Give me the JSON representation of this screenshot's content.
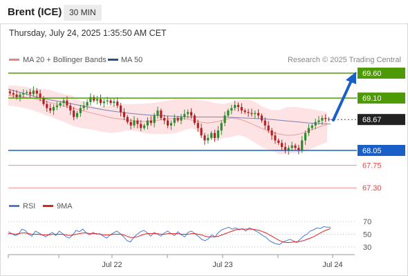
{
  "header": {
    "title": "Brent (ICE)",
    "timeframe": "30 MIN"
  },
  "timestamp": "Thursday, July 24, 2025 1:35:50 AM CET",
  "legend": {
    "ma20": "MA 20 + Bollinger Bands",
    "ma50": "MA 50",
    "credit": "Research © 2025 Trading Central"
  },
  "rsi_legend": {
    "rsi": "RSI",
    "ma9": "9MA"
  },
  "colors": {
    "green": "#4e9a06",
    "blue": "#1a5fc8",
    "red": "#e04848",
    "candle_up": "#2e8b2e",
    "candle_down": "#b22222",
    "band": "#fde3e3",
    "ma50": "#7d7fb3",
    "rsi": "#4a78d6",
    "rsi_ma": "#e02020",
    "current": "#222222"
  },
  "chart_data": [
    {
      "type": "candlestick",
      "title": "Brent (ICE)",
      "timeframe": "30 MIN",
      "x_tick_labels": [
        "Jul 22",
        "Jul 23",
        "Jul 24"
      ],
      "ylim": [
        67.15,
        69.75
      ],
      "levels": [
        {
          "label": "69.60",
          "value": 69.6,
          "kind": "resistance"
        },
        {
          "label": "69.10",
          "value": 69.1,
          "kind": "resistance"
        },
        {
          "label": "68.67",
          "value": 68.67,
          "kind": "current"
        },
        {
          "label": "68.05",
          "value": 68.05,
          "kind": "support"
        },
        {
          "label": "67.75",
          "value": 67.75,
          "kind": "support"
        },
        {
          "label": "67.30",
          "value": 67.3,
          "kind": "support"
        }
      ],
      "close_series": [
        69.2,
        69.17,
        69.12,
        69.17,
        69.2,
        69.22,
        69.18,
        69.25,
        69.19,
        69.1,
        68.98,
        68.9,
        68.85,
        68.92,
        68.95,
        69.0,
        69.05,
        68.95,
        68.85,
        68.72,
        68.8,
        68.9,
        68.95,
        69.02,
        69.12,
        69.05,
        69.08,
        69.0,
        69.03,
        69.05,
        69.0,
        69.03,
        68.95,
        68.82,
        68.72,
        68.62,
        68.55,
        68.65,
        68.58,
        68.5,
        68.55,
        68.65,
        68.6,
        68.75,
        68.85,
        68.7,
        68.65,
        68.55,
        68.6,
        68.7,
        68.65,
        68.72,
        68.78,
        68.82,
        68.75,
        68.6,
        68.5,
        68.35,
        68.25,
        68.3,
        68.4,
        68.3,
        68.45,
        68.6,
        68.75,
        68.85,
        68.9,
        68.96,
        68.92,
        68.85,
        68.82,
        68.8,
        68.78,
        68.8,
        68.75,
        68.65,
        68.55,
        68.45,
        68.35,
        68.25,
        68.2,
        68.12,
        68.05,
        68.1,
        68.15,
        68.1,
        68.05,
        68.25,
        68.4,
        68.5,
        68.55,
        68.62,
        68.65,
        68.7,
        68.68,
        68.67
      ],
      "ma20": [
        69.15,
        69.14,
        69.12,
        69.1,
        69.06,
        69.02,
        68.98,
        68.94,
        68.9,
        68.86,
        68.82,
        68.78,
        68.74,
        68.7,
        68.68,
        68.66,
        68.64,
        68.63,
        68.64,
        68.66,
        68.68,
        68.7,
        68.69,
        68.66,
        68.62,
        68.6,
        68.62,
        68.66,
        68.7,
        68.68,
        68.62,
        68.55,
        68.48,
        68.42,
        68.38,
        68.35,
        68.36,
        68.4,
        68.46,
        68.52,
        68.57
      ],
      "ma50": [
        69.28,
        69.22,
        69.16,
        69.1,
        69.06,
        69.02,
        68.98,
        68.94,
        68.9,
        68.86,
        68.83,
        68.8,
        68.78,
        68.76,
        68.75,
        68.74,
        68.73,
        68.72,
        68.72,
        68.72,
        68.72,
        68.71,
        68.7,
        68.69,
        68.68,
        68.66,
        68.64,
        68.62,
        68.6,
        68.59,
        68.58
      ],
      "bollinger_upper": [
        69.35,
        69.35,
        69.33,
        69.3,
        69.28,
        69.27,
        69.22,
        69.18,
        69.15,
        69.05,
        68.98,
        68.92,
        68.94,
        68.96,
        68.98,
        68.98,
        68.98,
        68.99,
        69.0,
        69.02,
        69.05,
        69.08,
        69.08,
        69.08,
        69.06,
        69.04,
        69.0,
        68.98,
        69.02,
        69.06,
        69.08,
        69.02,
        68.92,
        68.86,
        68.86,
        68.92,
        68.92,
        68.9,
        68.88,
        68.85,
        68.82
      ],
      "bollinger_lower": [
        68.95,
        68.93,
        68.9,
        68.86,
        68.8,
        68.74,
        68.68,
        68.62,
        68.55,
        68.5,
        68.48,
        68.45,
        68.42,
        68.4,
        68.42,
        68.46,
        68.44,
        68.4,
        68.38,
        68.38,
        68.38,
        68.4,
        68.45,
        68.5,
        68.42,
        68.3,
        68.25,
        68.3,
        68.32,
        68.36,
        68.3,
        68.2,
        68.1,
        68.05,
        67.98,
        67.98,
        68.0,
        68.02,
        68.08,
        68.15,
        68.22
      ]
    },
    {
      "type": "line",
      "title": "RSI",
      "series": [
        {
          "name": "RSI",
          "values": [
            54,
            51,
            48,
            50,
            58,
            56,
            50,
            47,
            55,
            52,
            49,
            46,
            50,
            53,
            48,
            55,
            51,
            46,
            44,
            49,
            56,
            54,
            58,
            52,
            49,
            53,
            50,
            51,
            47,
            44,
            49,
            52,
            55,
            51,
            46,
            40,
            38,
            45,
            50,
            54,
            56,
            52,
            47,
            53,
            50,
            47,
            52,
            55,
            51,
            48,
            54,
            49,
            46,
            53,
            55,
            51,
            47,
            42,
            40,
            43,
            49,
            46,
            53,
            57,
            59,
            61,
            58,
            60,
            57,
            59,
            55,
            60,
            58,
            55,
            52,
            48,
            45,
            40,
            37,
            35,
            34,
            38,
            40,
            42,
            40,
            37,
            42,
            47,
            50,
            55,
            57,
            60,
            59,
            62,
            61,
            61
          ]
        },
        {
          "name": "9MA",
          "values": [
            51,
            51,
            50,
            51,
            52,
            52,
            51,
            50,
            50,
            50,
            49,
            49,
            49,
            50,
            50,
            50,
            50,
            49,
            48,
            49,
            50,
            51,
            52,
            52,
            51,
            51,
            51,
            50,
            49,
            49,
            49,
            50,
            50,
            50,
            49,
            47,
            45,
            45,
            46,
            48,
            50,
            51,
            51,
            51,
            51,
            50,
            50,
            51,
            51,
            51,
            51,
            50,
            50,
            50,
            51,
            51,
            50,
            49,
            47,
            46,
            46,
            46,
            47,
            49,
            51,
            53,
            55,
            57,
            58,
            58,
            58,
            58,
            58,
            57,
            56,
            54,
            52,
            49,
            46,
            43,
            40,
            38,
            37,
            37,
            38,
            38,
            39,
            40,
            42,
            44,
            46,
            49,
            52,
            55,
            57,
            59
          ]
        }
      ],
      "y_tick_labels": [
        "70",
        "50",
        "30"
      ],
      "ylim": [
        20,
        80
      ]
    }
  ]
}
